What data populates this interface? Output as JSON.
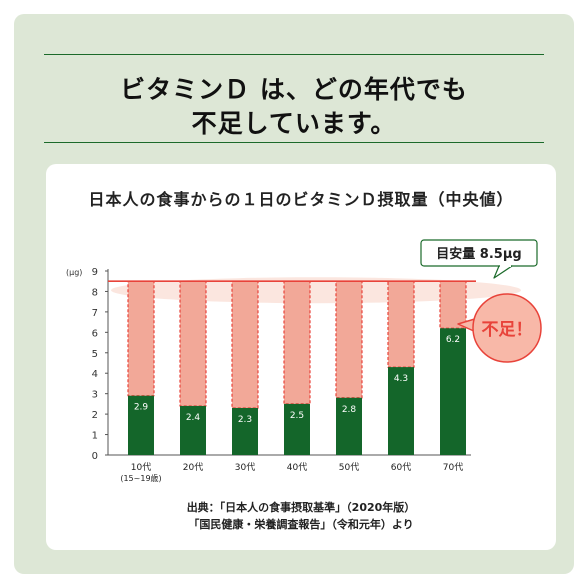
{
  "headline": {
    "line1": "ビタミンＤ は、どの年代でも",
    "line2": "不足しています。"
  },
  "chart_data": {
    "type": "bar",
    "title": "日本人の食事からの１日のビタミンＤ摂取量（中央値）",
    "ylabel": "(μg)",
    "ylim": [
      0,
      9
    ],
    "yticks": [
      "0",
      "1",
      "2",
      "3",
      "4",
      "5",
      "6",
      "7",
      "8",
      "9"
    ],
    "categories": [
      "10代",
      "20代",
      "30代",
      "40代",
      "50代",
      "60代",
      "70代"
    ],
    "category_sub": [
      "(15~19歳)",
      "",
      "",
      "",
      "",
      "",
      ""
    ],
    "values": [
      2.9,
      2.4,
      2.3,
      2.5,
      2.8,
      4.3,
      6.2
    ],
    "target": 8.5,
    "target_label": "目安量 8.5μg",
    "shortage_label": "不足！",
    "colors": {
      "bar": "#14662a",
      "shortfall": "#f2a898",
      "dashed": "#e8433a",
      "target_line": "#e8433a",
      "bubble_fill": "#f8b8a8",
      "bubble_border": "#e8433a",
      "bubble_text": "#e8433a",
      "callout_border": "#1b6a2a"
    }
  },
  "source": {
    "line1": "出典：「日本人の食事摂取基準」（2020年版）",
    "line2": "「国民健康・栄養調査報告」（令和元年）より"
  }
}
